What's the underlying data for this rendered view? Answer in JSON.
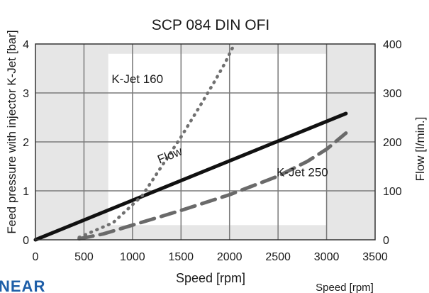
{
  "chart_data": {
    "type": "line",
    "title": "SCP 084 DIN OFI",
    "xlabel": "Speed [rpm]",
    "xlabel_bottom_right": "Speed [rpm]",
    "ylabel_left": "Feed pressure with injector K-Jet [bar]",
    "ylabel_right": "Flow [l/min.]",
    "xlim": [
      0,
      3500
    ],
    "ylim_left": [
      0,
      4
    ],
    "ylim_right": [
      0,
      400
    ],
    "x_ticks": [
      "0",
      "500",
      "1000",
      "1500",
      "2000",
      "2500",
      "3000",
      "3500"
    ],
    "y_left_ticks": [
      "0",
      "1",
      "2",
      "3",
      "4"
    ],
    "y_right_ticks": [
      "0",
      "100",
      "200",
      "300",
      "400"
    ],
    "grid": true,
    "series": [
      {
        "name": "Flow",
        "axis": "right",
        "style": "solid",
        "color": "#111111",
        "x": [
          0,
          3200
        ],
        "y": [
          0,
          258
        ]
      },
      {
        "name": "K-Jet 160",
        "axis": "left",
        "style": "dotted",
        "color": "#707070",
        "x": [
          450,
          800,
          1100,
          1300,
          1500,
          1700,
          1850,
          1950,
          2050
        ],
        "y": [
          0.05,
          0.35,
          0.9,
          1.5,
          2.1,
          2.75,
          3.25,
          3.6,
          4.0
        ]
      },
      {
        "name": "K-Jet 250",
        "axis": "left",
        "style": "dashed",
        "color": "#6a6a6a",
        "x": [
          450,
          700,
          1000,
          1500,
          2000,
          2500,
          2800,
          3000,
          3200
        ],
        "y": [
          0.02,
          0.12,
          0.3,
          0.6,
          0.92,
          1.3,
          1.6,
          1.85,
          2.18
        ]
      }
    ],
    "annotations": [
      {
        "text": "K-Jet 160",
        "x": 1050,
        "y": 3.2
      },
      {
        "text": "Flow",
        "x": 1400,
        "y": 1.65
      },
      {
        "text": "K-Jet 250",
        "x": 2750,
        "y": 1.3
      }
    ],
    "shaded_regions": [
      {
        "x": [
          0,
          750
        ],
        "y": [
          0,
          4
        ]
      },
      {
        "x": [
          3000,
          3500
        ],
        "y": [
          0,
          4
        ]
      },
      {
        "x": [
          750,
          3000
        ],
        "y": [
          3.8,
          4
        ]
      },
      {
        "x": [
          750,
          3000
        ],
        "y": [
          0,
          0.3
        ]
      }
    ]
  },
  "brand": {
    "logo_text": "NEAR"
  },
  "colors": {
    "shade": "#e6e6e6",
    "grid": "#7a7a7a",
    "axis": "#333333"
  }
}
